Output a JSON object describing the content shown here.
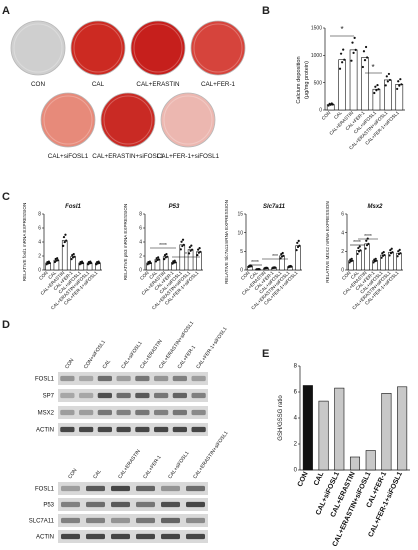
{
  "panel_a": {
    "letter": "A",
    "wells": [
      {
        "label": "CON",
        "color": "#cfcfcf"
      },
      {
        "label": "CAL",
        "color": "#cc2a22"
      },
      {
        "label": "CAL+ERASTIN",
        "color": "#c61f1c"
      },
      {
        "label": "CAL+FER-1",
        "color": "#d6443c"
      },
      {
        "label": "CAL+siFOSL1",
        "color": "#e78a7a"
      },
      {
        "label": "CAL+ERASTIN+siFOSL1",
        "color": "#c92a24"
      },
      {
        "label": "CAL+FER-1+siFOSL1",
        "color": "#ecb7b0"
      }
    ]
  },
  "panel_b": {
    "letter": "B",
    "ylabel_line1": "Calcium deposition",
    "ylabel_line2": "(μg/mg protein)",
    "sig1": "*",
    "sig2": "*"
  },
  "panel_c": {
    "letter": "C",
    "sig_marks": [
      "****",
      "*",
      "****",
      "***",
      "****",
      "****"
    ]
  },
  "panel_d": {
    "letter": "D",
    "blot1_lanes": [
      "CON",
      "CON+siFOSL1",
      "CAL",
      "CAL+siFOSL1",
      "CAL+ERASTIN",
      "CAL+ERASTIN+siFOSL1",
      "CAL+FER-1",
      "CAL+FER-1+siFOSL1"
    ],
    "blot1_proteins": [
      "FOSL1",
      "SP7",
      "MSX2",
      "ACTIN"
    ],
    "blot2_lanes": [
      "CON",
      "CAL",
      "CAL+ERASTIN",
      "CAL+FER-1",
      "CAL+siFOSL1",
      "CAL+ERASTIN+siFOSL1"
    ],
    "blot2_proteins": [
      "FOSL1",
      "P53",
      "SLC7A11",
      "ACTIN"
    ]
  },
  "panel_e": {
    "letter": "E"
  },
  "chart_data": [
    {
      "type": "bar",
      "id": "B",
      "ylabel": "Calcium deposition (μg/mg protein)",
      "categories": [
        "CON",
        "CAL",
        "CAL+ERASTIN",
        "CAL+FER-1",
        "CAL+siFOSL1",
        "CAL+ERASTIN+siFOSL1",
        "CAL+FER-1+siFOSL1"
      ],
      "values": [
        100,
        920,
        1100,
        960,
        380,
        550,
        470
      ],
      "yticks": [
        0,
        500,
        1000,
        1500
      ],
      "ylim": [
        0,
        1500
      ]
    },
    {
      "type": "bar",
      "id": "C1",
      "title": "Fosl1",
      "ylabel": "RELATIVE fosl1 mRNA EXPRESSION",
      "categories": [
        "CON",
        "CAL",
        "CAL+ERASTIN",
        "CAL+FER-1",
        "CAL+siFOSL1",
        "CAL+ERASTIN+siFOSL1",
        "CAL+FER-1+siFOSL1"
      ],
      "values": [
        1.0,
        1.4,
        4.2,
        1.9,
        1.0,
        1.0,
        1.0
      ],
      "yticks": [
        0,
        2,
        4,
        6,
        8
      ],
      "ylim": [
        0,
        8
      ]
    },
    {
      "type": "bar",
      "id": "C2",
      "title": "P53",
      "ylabel": "RELATIVE p53 mRNA EXPRESSION",
      "categories": [
        "CON",
        "CAL",
        "CAL+ERASTIN",
        "CAL+FER-1",
        "CAL+siFOSL1",
        "CAL+ERASTIN+siFOSL1",
        "CAL+FER-1+siFOSL1"
      ],
      "values": [
        1.0,
        1.5,
        1.9,
        1.1,
        3.6,
        2.9,
        2.6
      ],
      "yticks": [
        0,
        2,
        4,
        6,
        8
      ],
      "ylim": [
        0,
        8
      ]
    },
    {
      "type": "bar",
      "id": "C3",
      "title": "Slc7a11",
      "ylabel": "RELATIVE Slc7a11mRNA EXPRESSION",
      "categories": [
        "CON",
        "CAL",
        "CAL+ERASTIN",
        "CAL+FER-1",
        "CAL+siFOSL1",
        "CAL+ERASTIN+siFOSL1",
        "CAL+FER-1+siFOSL1"
      ],
      "values": [
        1.0,
        0.2,
        0.5,
        0.6,
        3.8,
        0.9,
        6.5
      ],
      "yticks": [
        0,
        5,
        10,
        15
      ],
      "ylim": [
        0,
        15
      ]
    },
    {
      "type": "bar",
      "id": "C4",
      "title": "Msx2",
      "ylabel": "RELATIVE MSX2 mRNA EXPRESSION",
      "categories": [
        "CON",
        "CAL",
        "CAL+ERASTIN",
        "CAL+FER-1",
        "CAL+siFOSL1",
        "CAL+ERASTIN+siFOSL1",
        "CAL+FER-1+siFOSL1"
      ],
      "values": [
        1.0,
        2.1,
        2.8,
        1.0,
        1.6,
        1.9,
        1.8
      ],
      "yticks": [
        0,
        2,
        4,
        6
      ],
      "ylim": [
        0,
        6
      ]
    },
    {
      "type": "bar",
      "id": "E",
      "ylabel": "GSH/GSSG ratio",
      "categories": [
        "CON",
        "CAL",
        "CAL+siFOSL1",
        "CAL+ERASTIN",
        "CAL+ERASTIN+siFOSL1",
        "CAL+FER-1",
        "CAL+FER-1+siFOSL1"
      ],
      "values": [
        6.5,
        5.3,
        6.3,
        1.0,
        1.5,
        5.9,
        6.4
      ],
      "colors": [
        "#111111",
        "#c8c8c8",
        "#c8c8c8",
        "#c8c8c8",
        "#c8c8c8",
        "#c8c8c8",
        "#c8c8c8"
      ],
      "yticks": [
        0,
        2,
        4,
        6,
        8
      ],
      "ylim": [
        0,
        8
      ]
    }
  ]
}
